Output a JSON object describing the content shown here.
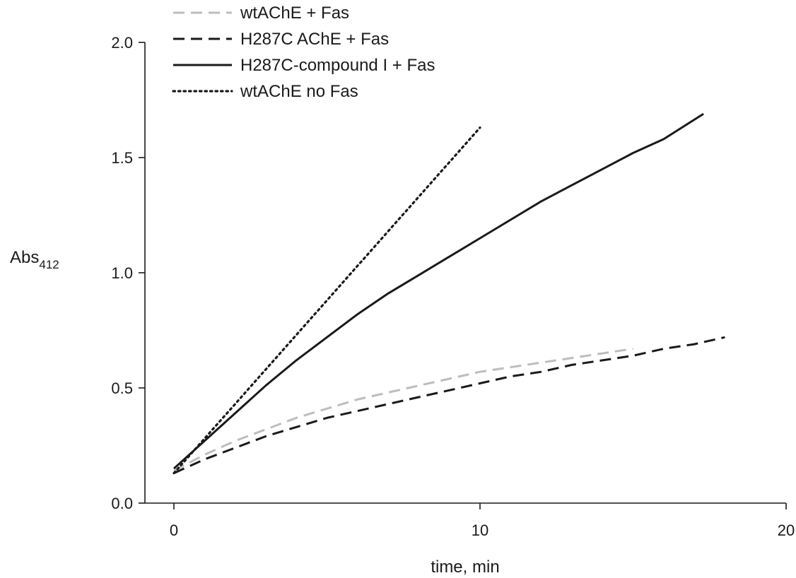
{
  "chart_data": {
    "type": "line",
    "title": "",
    "xlabel": "time, min",
    "ylabel": {
      "main": "Abs",
      "subscript": "412"
    },
    "xlim": [
      -1,
      20
    ],
    "ylim": [
      0.0,
      2.0
    ],
    "xticks": [
      0,
      10,
      20
    ],
    "xtick_labels": [
      "0",
      "10",
      "20"
    ],
    "yticks": [
      0.0,
      0.5,
      1.0,
      1.5,
      2.0
    ],
    "ytick_labels": [
      "0.0",
      "0.5",
      "1.0",
      "1.5",
      "2.0"
    ],
    "grid": false,
    "legend_position": "top-left",
    "series": [
      {
        "name": "wtAChE + Fas",
        "style": "dashed",
        "color": "#bdbdbd",
        "x": [
          0,
          1,
          2,
          3,
          4,
          5,
          6,
          7,
          8,
          9,
          10,
          11,
          12,
          13,
          14,
          15
        ],
        "y": [
          0.14,
          0.21,
          0.27,
          0.32,
          0.37,
          0.41,
          0.45,
          0.48,
          0.51,
          0.54,
          0.57,
          0.59,
          0.61,
          0.63,
          0.65,
          0.67
        ]
      },
      {
        "name": "H287C AChE + Fas",
        "style": "dashed",
        "color": "#1a1a1a",
        "x": [
          0,
          1,
          2,
          3,
          4,
          5,
          6,
          7,
          8,
          9,
          10,
          11,
          12,
          13,
          14,
          15,
          16,
          17,
          18
        ],
        "y": [
          0.13,
          0.19,
          0.24,
          0.29,
          0.33,
          0.37,
          0.4,
          0.43,
          0.46,
          0.49,
          0.52,
          0.55,
          0.57,
          0.6,
          0.62,
          0.64,
          0.67,
          0.69,
          0.72
        ]
      },
      {
        "name": "H287C-compound I + Fas",
        "style": "solid",
        "color": "#1a1a1a",
        "x": [
          0,
          1,
          2,
          3,
          4,
          5,
          6,
          7,
          8,
          9,
          10,
          11,
          12,
          13,
          14,
          15,
          16,
          17.3
        ],
        "y": [
          0.15,
          0.27,
          0.39,
          0.51,
          0.62,
          0.72,
          0.82,
          0.91,
          0.99,
          1.07,
          1.15,
          1.23,
          1.31,
          1.38,
          1.45,
          1.52,
          1.58,
          1.69
        ]
      },
      {
        "name": "wtAChE no Fas",
        "style": "dotted",
        "color": "#1a1a1a",
        "x": [
          0,
          1,
          2,
          3,
          4,
          5,
          6,
          7,
          8,
          9,
          10
        ],
        "y": [
          0.13,
          0.28,
          0.43,
          0.58,
          0.73,
          0.88,
          1.03,
          1.18,
          1.33,
          1.48,
          1.63
        ]
      }
    ]
  }
}
